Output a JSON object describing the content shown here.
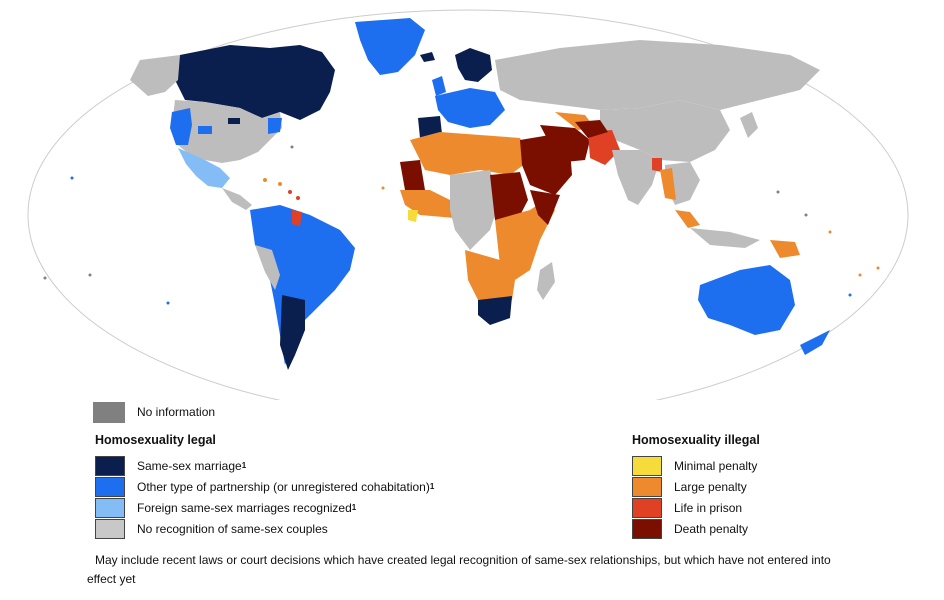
{
  "legend_top": {
    "no_info_label": "No information",
    "no_info_color": "#808080"
  },
  "legal": {
    "title": "Homosexuality legal",
    "items": [
      {
        "label": "Same-sex marriage",
        "sup": "1",
        "color": "#0a1f4d"
      },
      {
        "label": "Other type of partnership (or unregistered cohabitation)",
        "sup": "1",
        "color": "#1e6ff0"
      },
      {
        "label": "Foreign same-sex marriages recognized",
        "sup": "1",
        "color": "#84bdf5"
      },
      {
        "label": "No recognition of same-sex couples",
        "sup": "",
        "color": "#c8c8c8"
      }
    ]
  },
  "illegal": {
    "title": "Homosexuality illegal",
    "items": [
      {
        "label": "Minimal penalty",
        "color": "#f5dc3a"
      },
      {
        "label": "Large penalty",
        "color": "#ee8a2e"
      },
      {
        "label": "Life in prison",
        "color": "#e04024"
      },
      {
        "label": "Death penalty",
        "color": "#7a0f00"
      }
    ]
  },
  "footnote": {
    "line1": "May include recent laws or court decisions which have created legal recognition of same-sex relationships, but which have not entered into",
    "line2": "effect yet"
  },
  "colors": {
    "ocean": "#ffffff",
    "border": "#cfcfcf",
    "gray": "#bdbdbd"
  }
}
